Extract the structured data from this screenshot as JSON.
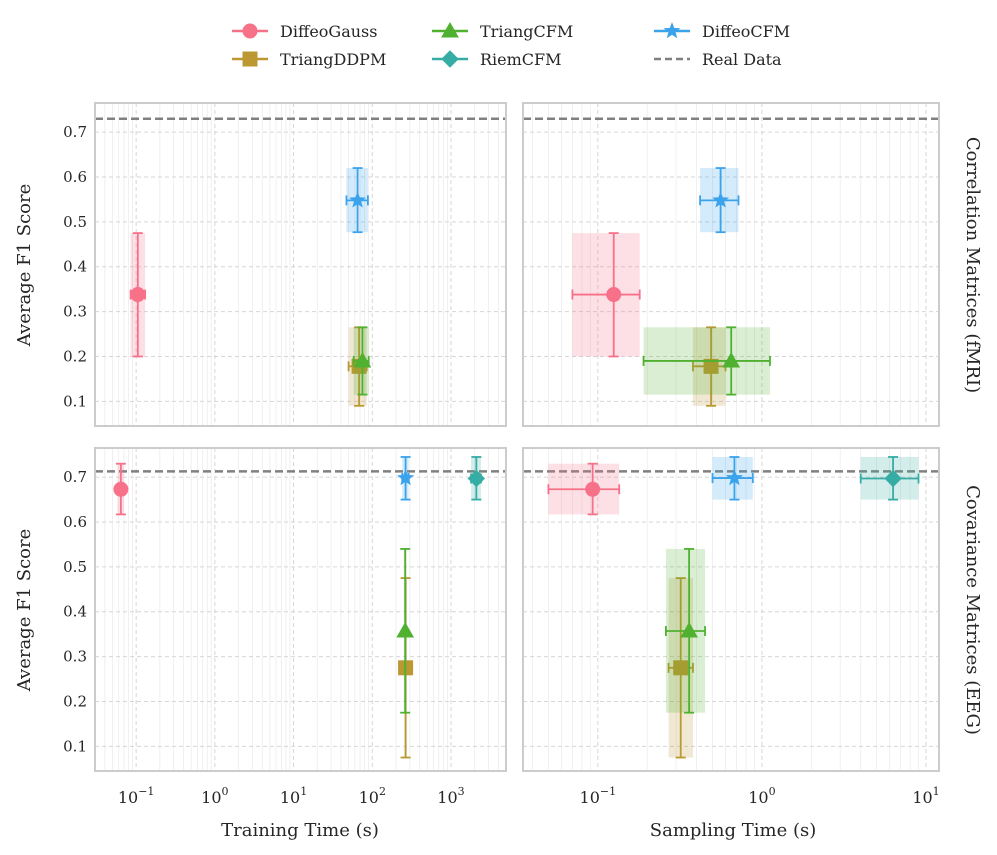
{
  "legend": {
    "entries": [
      {
        "key": "diffeogauss",
        "label": "DiffeoGauss"
      },
      {
        "key": "triangddpm",
        "label": "TriangDDPM"
      },
      {
        "key": "triangcfm",
        "label": "TriangCFM"
      },
      {
        "key": "riemcfm",
        "label": "RiemCFM"
      },
      {
        "key": "diffeocfm",
        "label": "DiffeoCFM"
      },
      {
        "key": "real",
        "label": "Real Data"
      }
    ]
  },
  "colors": {
    "diffeogauss": "#f77189",
    "triangddpm": "#bb9832",
    "triangcfm": "#50b131",
    "riemcfm": "#36ada4",
    "diffeocfm": "#3ba3ec",
    "real": "#808080"
  },
  "axes": {
    "ylabel": "Average F1 Score",
    "xlabel_train": "Training Time (s)",
    "xlabel_sample": "Sampling Time (s)",
    "row_fmri": "Correlation Matrices (fMRI)",
    "row_eeg": "Covariance Matrices (EEG)",
    "yticks": [
      "0.1",
      "0.2",
      "0.3",
      "0.4",
      "0.5",
      "0.6",
      "0.7"
    ],
    "xticks_train": [
      {
        "base": "10",
        "exp": "−1"
      },
      {
        "base": "10",
        "exp": "0"
      },
      {
        "base": "10",
        "exp": "1"
      },
      {
        "base": "10",
        "exp": "2"
      },
      {
        "base": "10",
        "exp": "3"
      }
    ],
    "xticks_sample": [
      {
        "base": "10",
        "exp": "−1"
      },
      {
        "base": "10",
        "exp": "0"
      },
      {
        "base": "10",
        "exp": "1"
      }
    ]
  },
  "chart_data": [
    {
      "id": "fmri-training",
      "type": "scatter",
      "xscale": "log",
      "xlim": [
        0.03,
        5000
      ],
      "ylim": [
        0.045,
        0.765
      ],
      "xlabel": "Training Time (s)",
      "ylabel": "Average F1 Score",
      "reference": {
        "name": "Real Data",
        "y": 0.73
      },
      "series": [
        {
          "name": "DiffeoGauss",
          "x": 0.105,
          "xerr": [
            0.085,
            0.13
          ],
          "y": 0.338,
          "yerr": [
            0.2,
            0.475
          ]
        },
        {
          "name": "TriangDDPM",
          "x": 68,
          "xerr": [
            50,
            85
          ],
          "y": 0.178,
          "yerr": [
            0.09,
            0.265
          ]
        },
        {
          "name": "TriangCFM",
          "x": 75,
          "xerr": [
            58,
            90
          ],
          "y": 0.19,
          "yerr": [
            0.115,
            0.265
          ]
        },
        {
          "name": "DiffeoCFM",
          "x": 65,
          "xerr": [
            47,
            88
          ],
          "y": 0.548,
          "yerr": [
            0.477,
            0.62
          ]
        }
      ]
    },
    {
      "id": "fmri-sampling",
      "type": "scatter",
      "xscale": "log",
      "xlim": [
        0.035,
        12
      ],
      "ylim": [
        0.045,
        0.765
      ],
      "xlabel": "Sampling Time (s)",
      "ylabel": "",
      "reference": {
        "name": "Real Data",
        "y": 0.73
      },
      "series": [
        {
          "name": "DiffeoGauss",
          "x": 0.125,
          "xerr": [
            0.07,
            0.18
          ],
          "y": 0.338,
          "yerr": [
            0.2,
            0.475
          ]
        },
        {
          "name": "TriangDDPM",
          "x": 0.49,
          "xerr": [
            0.38,
            0.6
          ],
          "y": 0.178,
          "yerr": [
            0.09,
            0.265
          ]
        },
        {
          "name": "TriangCFM",
          "x": 0.65,
          "xerr": [
            0.19,
            1.12
          ],
          "y": 0.19,
          "yerr": [
            0.115,
            0.265
          ]
        },
        {
          "name": "DiffeoCFM",
          "x": 0.56,
          "xerr": [
            0.42,
            0.72
          ],
          "y": 0.548,
          "yerr": [
            0.477,
            0.62
          ]
        }
      ]
    },
    {
      "id": "eeg-training",
      "type": "scatter",
      "xscale": "log",
      "xlim": [
        0.03,
        5000
      ],
      "ylim": [
        0.045,
        0.765
      ],
      "xlabel": "Training Time (s)",
      "ylabel": "Average F1 Score",
      "reference": {
        "name": "Real Data",
        "y": 0.713
      },
      "series": [
        {
          "name": "DiffeoGauss",
          "x": 0.064,
          "xerr": [
            0.058,
            0.07
          ],
          "y": 0.673,
          "yerr": [
            0.617,
            0.73
          ]
        },
        {
          "name": "TriangDDPM",
          "x": 265,
          "xerr": [
            255,
            275
          ],
          "y": 0.275,
          "yerr": [
            0.075,
            0.475
          ]
        },
        {
          "name": "TriangCFM",
          "x": 262,
          "xerr": [
            252,
            272
          ],
          "y": 0.357,
          "yerr": [
            0.175,
            0.54
          ]
        },
        {
          "name": "RiemCFM",
          "x": 2100,
          "xerr": [
            1800,
            2400
          ],
          "y": 0.697,
          "yerr": [
            0.65,
            0.745
          ]
        },
        {
          "name": "DiffeoCFM",
          "x": 265,
          "xerr": [
            240,
            290
          ],
          "y": 0.698,
          "yerr": [
            0.65,
            0.745
          ]
        }
      ]
    },
    {
      "id": "eeg-sampling",
      "type": "scatter",
      "xscale": "log",
      "xlim": [
        0.035,
        12
      ],
      "ylim": [
        0.045,
        0.765
      ],
      "xlabel": "Sampling Time (s)",
      "ylabel": "",
      "reference": {
        "name": "Real Data",
        "y": 0.713
      },
      "series": [
        {
          "name": "DiffeoGauss",
          "x": 0.093,
          "xerr": [
            0.05,
            0.135
          ],
          "y": 0.673,
          "yerr": [
            0.617,
            0.73
          ]
        },
        {
          "name": "TriangDDPM",
          "x": 0.32,
          "xerr": [
            0.27,
            0.38
          ],
          "y": 0.275,
          "yerr": [
            0.075,
            0.475
          ]
        },
        {
          "name": "TriangCFM",
          "x": 0.36,
          "xerr": [
            0.26,
            0.45
          ],
          "y": 0.357,
          "yerr": [
            0.175,
            0.54
          ]
        },
        {
          "name": "RiemCFM",
          "x": 6.3,
          "xerr": [
            4,
            9
          ],
          "y": 0.697,
          "yerr": [
            0.65,
            0.745
          ]
        },
        {
          "name": "DiffeoCFM",
          "x": 0.68,
          "xerr": [
            0.5,
            0.88
          ],
          "y": 0.698,
          "yerr": [
            0.65,
            0.745
          ]
        }
      ]
    }
  ]
}
